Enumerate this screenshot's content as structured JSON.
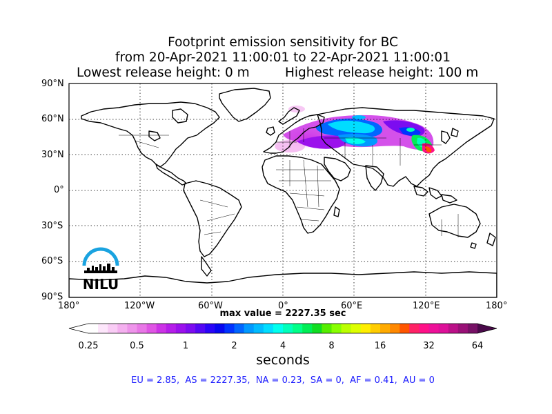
{
  "title": {
    "line1": "Footprint emission sensitivity for BC",
    "line2": "from 20-Apr-2021 11:00:01 to 22-Apr-2021 11:00:01",
    "lowest_release": "Lowest release height: 0 m",
    "highest_release": "Highest release height: 100 m"
  },
  "map": {
    "projection": "equirectangular",
    "lon_range": [
      -180,
      180
    ],
    "lat_range": [
      -90,
      90
    ],
    "lat_labels": [
      "90°N",
      "60°N",
      "30°N",
      "0°",
      "30°S",
      "60°S",
      "90°S"
    ],
    "lon_labels": [
      "180°",
      "120°W",
      "60°W",
      "0°",
      "60°E",
      "120°E",
      "180°"
    ],
    "grid": "dotted",
    "logo_text": "NILU",
    "logo_color": "#1aa3e0"
  },
  "max_value_text": "max value = 2227.35 sec",
  "colorbar": {
    "unit_label": "seconds",
    "tick_labels": [
      "0.25",
      "0.5",
      "1",
      "2",
      "4",
      "8",
      "16",
      "32",
      "64"
    ],
    "scale": "log2",
    "colors": [
      "#ffffff",
      "#fde6fb",
      "#f9ccf5",
      "#f4b0ef",
      "#ee94ea",
      "#e877e6",
      "#df55e4",
      "#cc33e6",
      "#b51ee9",
      "#9b11ec",
      "#7c0cf0",
      "#5408f4",
      "#2a05f8",
      "#0707f0",
      "#0033ff",
      "#0066ff",
      "#0099ff",
      "#00bbff",
      "#00ddff",
      "#00ffee",
      "#00ffbb",
      "#00ff88",
      "#00ee55",
      "#11dd22",
      "#55ee00",
      "#88ff00",
      "#bbff00",
      "#ddff00",
      "#ffee00",
      "#ffcc00",
      "#ffaa00",
      "#ff8800",
      "#ff5500",
      "#ff2266",
      "#ff1188",
      "#ee1199",
      "#dd1199",
      "#bb1188",
      "#991177",
      "#771166"
    ]
  },
  "region_stats": "EU = 2.85,  AS = 2227.35,  NA = 0.23,  SA = 0,  AF = 0.41,  AU = 0"
}
